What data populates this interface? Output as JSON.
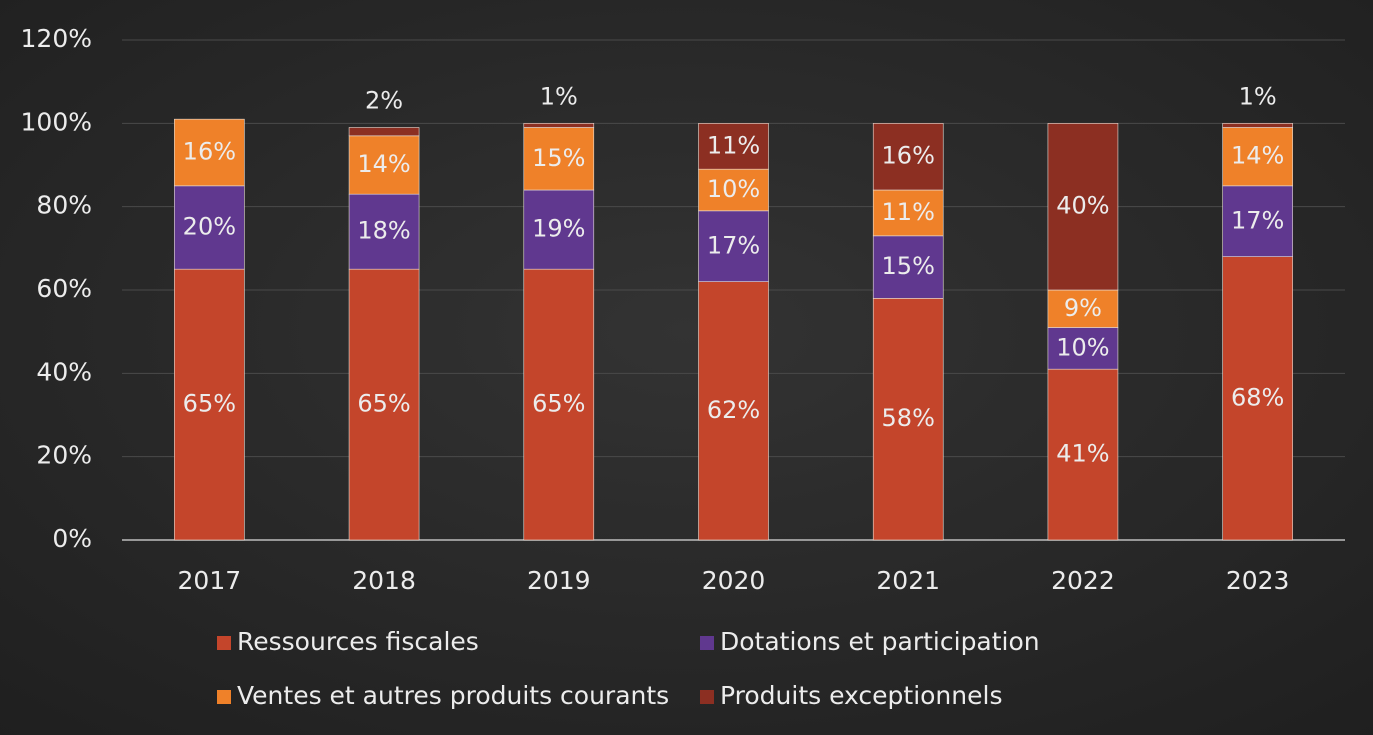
{
  "chart_data": {
    "type": "stacked_bar",
    "categories": [
      "2017",
      "2018",
      "2019",
      "2020",
      "2021",
      "2022",
      "2023"
    ],
    "series": [
      {
        "name": "Ressources fiscales",
        "color": "#c4452b",
        "values": [
          65,
          65,
          65,
          62,
          58,
          41,
          68
        ],
        "value_labels": [
          "65%",
          "65%",
          "65%",
          "62%",
          "58%",
          "41%",
          "68%"
        ]
      },
      {
        "name": "Dotations et participation",
        "color": "#60388f",
        "values": [
          20,
          18,
          19,
          17,
          15,
          10,
          17
        ],
        "value_labels": [
          "20%",
          "18%",
          "19%",
          "17%",
          "15%",
          "10%",
          "17%"
        ]
      },
      {
        "name": "Ventes et autres produits courants",
        "color": "#ef8129",
        "values": [
          16,
          14,
          15,
          10,
          11,
          9,
          14
        ],
        "value_labels": [
          "16%",
          "14%",
          "15%",
          "10%",
          "11%",
          "9%",
          "14%"
        ]
      },
      {
        "name": "Produits exceptionnels",
        "color": "#8c2f22",
        "values": [
          null,
          2,
          1,
          11,
          16,
          40,
          1
        ],
        "value_labels": [
          null,
          "2%",
          "1%",
          "11%",
          "16%",
          "40%",
          "1%"
        ]
      }
    ],
    "ylim": [
      0,
      120
    ],
    "yticks": [
      {
        "value": 0,
        "label": "0%"
      },
      {
        "value": 20,
        "label": "20%"
      },
      {
        "value": 40,
        "label": "40%"
      },
      {
        "value": 60,
        "label": "60%"
      },
      {
        "value": 80,
        "label": "80%"
      },
      {
        "value": 100,
        "label": "100%"
      },
      {
        "value": 120,
        "label": "120%"
      }
    ],
    "grid": true,
    "legend": "bottom"
  }
}
